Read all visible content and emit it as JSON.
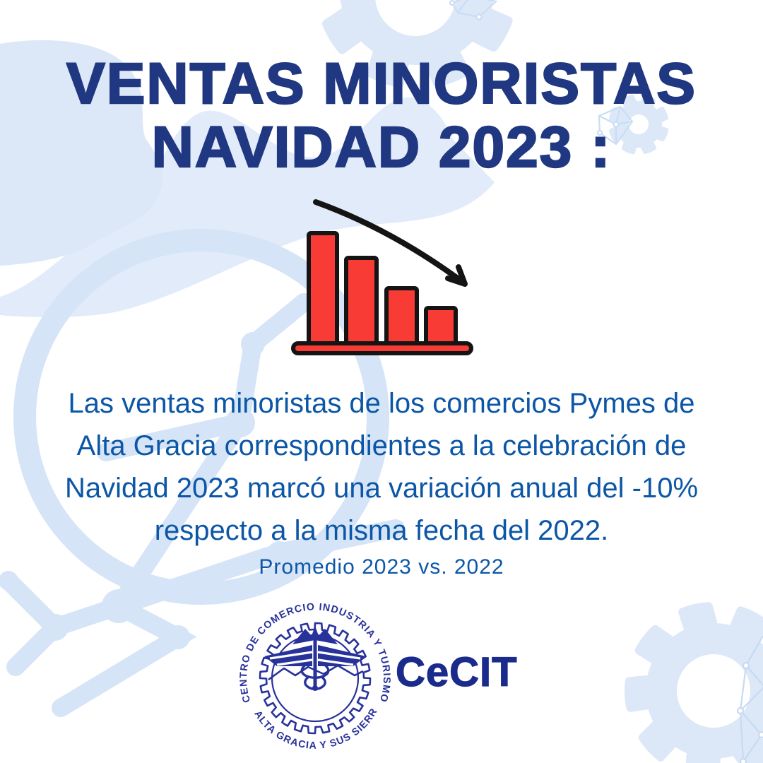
{
  "poster": {
    "background": "#ffffff",
    "accent_pale_blue": "#dce8f8",
    "title": {
      "line1": "VENTAS MINORISTAS",
      "line2": "NAVIDAD 2023 :",
      "color": "#203781"
    },
    "chart_icon": {
      "name": "declining-bar-chart-icon",
      "bar_count": 4,
      "trend": "down",
      "bar_color": "#f93b35",
      "outline_color": "#141414"
    },
    "body": {
      "color": "#0b56a6",
      "lines": [
        "Las ventas minoristas de los comercios Pymes de",
        "Alta Gracia correspondientes a la celebración de",
        "Navidad 2023 marcó una variación anual del -10%",
        "respecto a la misma fecha del 2022."
      ]
    },
    "comparison_note": {
      "text": "Promedio 2023 vs. 2022",
      "color": "#0d57a8"
    },
    "logo": {
      "arc_top": "CENTRO DE COMERCIO INDUSTRIA Y TURISMO",
      "arc_bottom": "DE ALTA GRACIA Y SUS SIERRAS",
      "acronym": "CeCIT",
      "emblem_color": "#28329b",
      "acronym_color": "#1b2b8c"
    }
  }
}
